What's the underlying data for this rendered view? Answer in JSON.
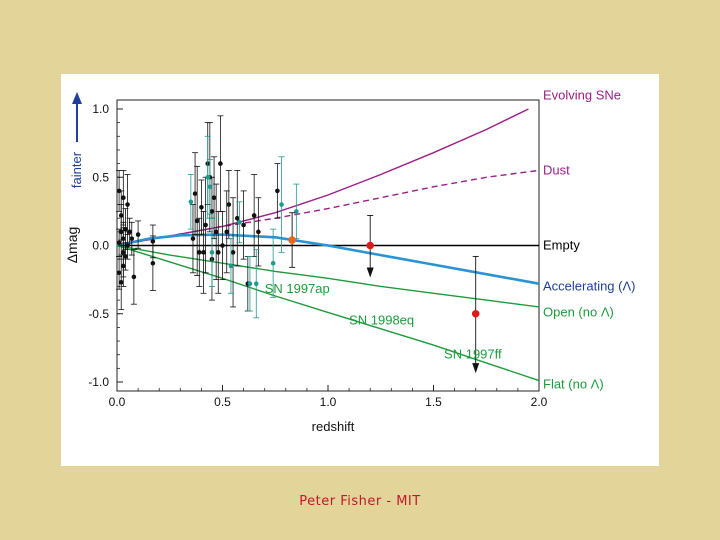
{
  "footer": {
    "credit": "Peter Fisher - MIT"
  },
  "chart_data": {
    "type": "scatter",
    "title": "",
    "xlabel": "redshift",
    "ylabel": "Δmag",
    "y_arrow_label": "fainter",
    "xlim": [
      0.0,
      2.0
    ],
    "ylim": [
      -1.0,
      1.0
    ],
    "xticks": [
      "0.0",
      "0.5",
      "1.0",
      "1.5",
      "2.0"
    ],
    "yticks": [
      "1.0",
      "0.5",
      "0.0",
      "-0.5",
      "-1.0"
    ],
    "colors": {
      "evolving": "#9b1f86",
      "dust": "#9b1f86",
      "empty": "#000000",
      "accelerating": "#2a93d5",
      "open": "#1e9b3c",
      "flat": "#1e9b3c",
      "black_points": "#111111",
      "teal_points": "#1f9a8f",
      "highlight_orange": "#e8651a",
      "highlight_red": "#e0191b"
    },
    "curves": [
      {
        "name": "Evolving SNe",
        "color": "#9b1f86",
        "style": "solid",
        "points": [
          [
            0,
            0
          ],
          [
            0.25,
            0.07
          ],
          [
            0.5,
            0.14
          ],
          [
            0.75,
            0.24
          ],
          [
            1.0,
            0.37
          ],
          [
            1.25,
            0.52
          ],
          [
            1.5,
            0.68
          ],
          [
            1.75,
            0.85
          ],
          [
            1.95,
            1.0
          ]
        ]
      },
      {
        "name": "Dust",
        "color": "#9b1f86",
        "style": "dashed",
        "points": [
          [
            0,
            0
          ],
          [
            0.25,
            0.07
          ],
          [
            0.5,
            0.14
          ],
          [
            0.75,
            0.2
          ],
          [
            1.0,
            0.27
          ],
          [
            1.25,
            0.35
          ],
          [
            1.5,
            0.43
          ],
          [
            1.75,
            0.5
          ],
          [
            2.0,
            0.55
          ]
        ]
      },
      {
        "name": "Empty",
        "color": "#000000",
        "style": "solid",
        "points": [
          [
            0,
            0
          ],
          [
            2.0,
            0
          ]
        ]
      },
      {
        "name": "Accelerating (Λ)",
        "color": "#2a93d5",
        "style": "solid",
        "points": [
          [
            0,
            0
          ],
          [
            0.15,
            0.05
          ],
          [
            0.3,
            0.075
          ],
          [
            0.5,
            0.08
          ],
          [
            0.75,
            0.06
          ],
          [
            1.0,
            0.0
          ],
          [
            1.25,
            -0.07
          ],
          [
            1.5,
            -0.14
          ],
          [
            1.75,
            -0.21
          ],
          [
            2.0,
            -0.28
          ]
        ]
      },
      {
        "name": "Open (no Λ)",
        "color": "#1e9b3c",
        "style": "solid",
        "points": [
          [
            0,
            0
          ],
          [
            0.25,
            -0.07
          ],
          [
            0.5,
            -0.13
          ],
          [
            0.75,
            -0.19
          ],
          [
            1.0,
            -0.24
          ],
          [
            1.25,
            -0.3
          ],
          [
            1.5,
            -0.35
          ],
          [
            1.75,
            -0.4
          ],
          [
            2.0,
            -0.45
          ]
        ]
      },
      {
        "name": "Flat (no Λ)",
        "color": "#1e9b3c",
        "style": "solid",
        "points": [
          [
            0,
            0
          ],
          [
            0.25,
            -0.12
          ],
          [
            0.5,
            -0.24
          ],
          [
            0.75,
            -0.37
          ],
          [
            1.0,
            -0.49
          ],
          [
            1.25,
            -0.61
          ],
          [
            1.5,
            -0.73
          ],
          [
            1.75,
            -0.86
          ],
          [
            2.0,
            -0.99
          ]
        ]
      }
    ],
    "curve_labels": [
      {
        "text": "Evolving SNe",
        "x": 2.05,
        "y": 1.1,
        "color": "#9b1f86"
      },
      {
        "text": "Dust",
        "x": 2.05,
        "y": 0.55,
        "color": "#9b1f86"
      },
      {
        "text": "Empty",
        "x": 2.05,
        "y": 0.0,
        "color": "#000000"
      },
      {
        "text": "Accelerating (Λ)",
        "x": 2.05,
        "y": -0.3,
        "color": "#1f3f99"
      },
      {
        "text": "Open (no Λ)",
        "x": 2.05,
        "y": -0.49,
        "color": "#1e9b3c"
      },
      {
        "text": "Flat (no Λ)",
        "x": 2.05,
        "y": -1.02,
        "color": "#1e9b3c"
      }
    ],
    "annotations": [
      {
        "text": "SN 1997ap",
        "x": 0.7,
        "y": -0.32,
        "color": "#1e9b3c"
      },
      {
        "text": "SN 1998eq",
        "x": 1.1,
        "y": -0.55,
        "color": "#1e9b3c"
      },
      {
        "text": "SN 1997ff",
        "x": 1.55,
        "y": -0.8,
        "color": "#1e9b3c"
      }
    ],
    "highlight_points": [
      {
        "name": "SN 1997ap",
        "x": 0.83,
        "y": 0.04,
        "err": 0.2,
        "color": "#e8651a",
        "upper_limit": false
      },
      {
        "name": "SN 1998eq",
        "x": 1.2,
        "y": 0.0,
        "err": 0.22,
        "color": "#e0191b",
        "upper_limit": true
      },
      {
        "name": "SN 1997ff",
        "x": 1.7,
        "y": -0.5,
        "err": 0.42,
        "color": "#e0191b",
        "upper_limit": true
      }
    ],
    "black_points": [
      [
        0.01,
        0.02,
        0.1
      ],
      [
        0.01,
        -0.2,
        0.12
      ],
      [
        0.01,
        0.4,
        0.15
      ],
      [
        0.02,
        0.1,
        0.2
      ],
      [
        0.02,
        -0.27,
        0.2
      ],
      [
        0.02,
        0.22,
        0.18
      ],
      [
        0.03,
        -0.05,
        0.18
      ],
      [
        0.03,
        0.35,
        0.2
      ],
      [
        0.03,
        -0.15,
        0.15
      ],
      [
        0.03,
        0.05,
        0.12
      ],
      [
        0.04,
        0.12,
        0.15
      ],
      [
        0.04,
        -0.08,
        0.1
      ],
      [
        0.05,
        0.3,
        0.22
      ],
      [
        0.05,
        0.0,
        0.1
      ],
      [
        0.06,
        0.1,
        0.1
      ],
      [
        0.07,
        0.05,
        0.12
      ],
      [
        0.08,
        -0.23,
        0.2
      ],
      [
        0.1,
        0.08,
        0.1
      ],
      [
        0.17,
        -0.13,
        0.2
      ],
      [
        0.17,
        0.03,
        0.12
      ],
      [
        0.36,
        0.05,
        0.25
      ],
      [
        0.37,
        0.38,
        0.3
      ],
      [
        0.38,
        0.18,
        0.4
      ],
      [
        0.39,
        -0.05,
        0.25
      ],
      [
        0.4,
        0.28,
        0.2
      ],
      [
        0.41,
        -0.05,
        0.3
      ],
      [
        0.42,
        0.15,
        0.35
      ],
      [
        0.43,
        0.6,
        0.3
      ],
      [
        0.44,
        0.5,
        0.4
      ],
      [
        0.45,
        -0.1,
        0.3
      ],
      [
        0.45,
        0.25,
        0.25
      ],
      [
        0.46,
        0.35,
        0.3
      ],
      [
        0.47,
        0.1,
        0.35
      ],
      [
        0.48,
        -0.05,
        0.3
      ],
      [
        0.49,
        0.6,
        0.35
      ],
      [
        0.5,
        0.0,
        0.25
      ],
      [
        0.52,
        0.1,
        0.3
      ],
      [
        0.53,
        0.3,
        0.25
      ],
      [
        0.55,
        -0.05,
        0.4
      ],
      [
        0.57,
        0.2,
        0.35
      ],
      [
        0.6,
        0.15,
        0.25
      ],
      [
        0.62,
        -0.28,
        0.2
      ],
      [
        0.65,
        0.22,
        0.3
      ],
      [
        0.67,
        0.1,
        0.25
      ],
      [
        0.76,
        0.4,
        0.2
      ]
    ],
    "teal_points": [
      [
        0.35,
        0.32,
        0.2
      ],
      [
        0.43,
        0.5,
        0.3
      ],
      [
        0.44,
        0.43,
        0.2
      ],
      [
        0.45,
        -0.05,
        0.25
      ],
      [
        0.54,
        -0.15,
        0.2
      ],
      [
        0.58,
        0.17,
        0.15
      ],
      [
        0.63,
        -0.28,
        0.2
      ],
      [
        0.66,
        -0.28,
        0.25
      ],
      [
        0.74,
        -0.13,
        0.25
      ],
      [
        0.78,
        0.3,
        0.35
      ],
      [
        0.85,
        0.25,
        0.2
      ]
    ]
  }
}
